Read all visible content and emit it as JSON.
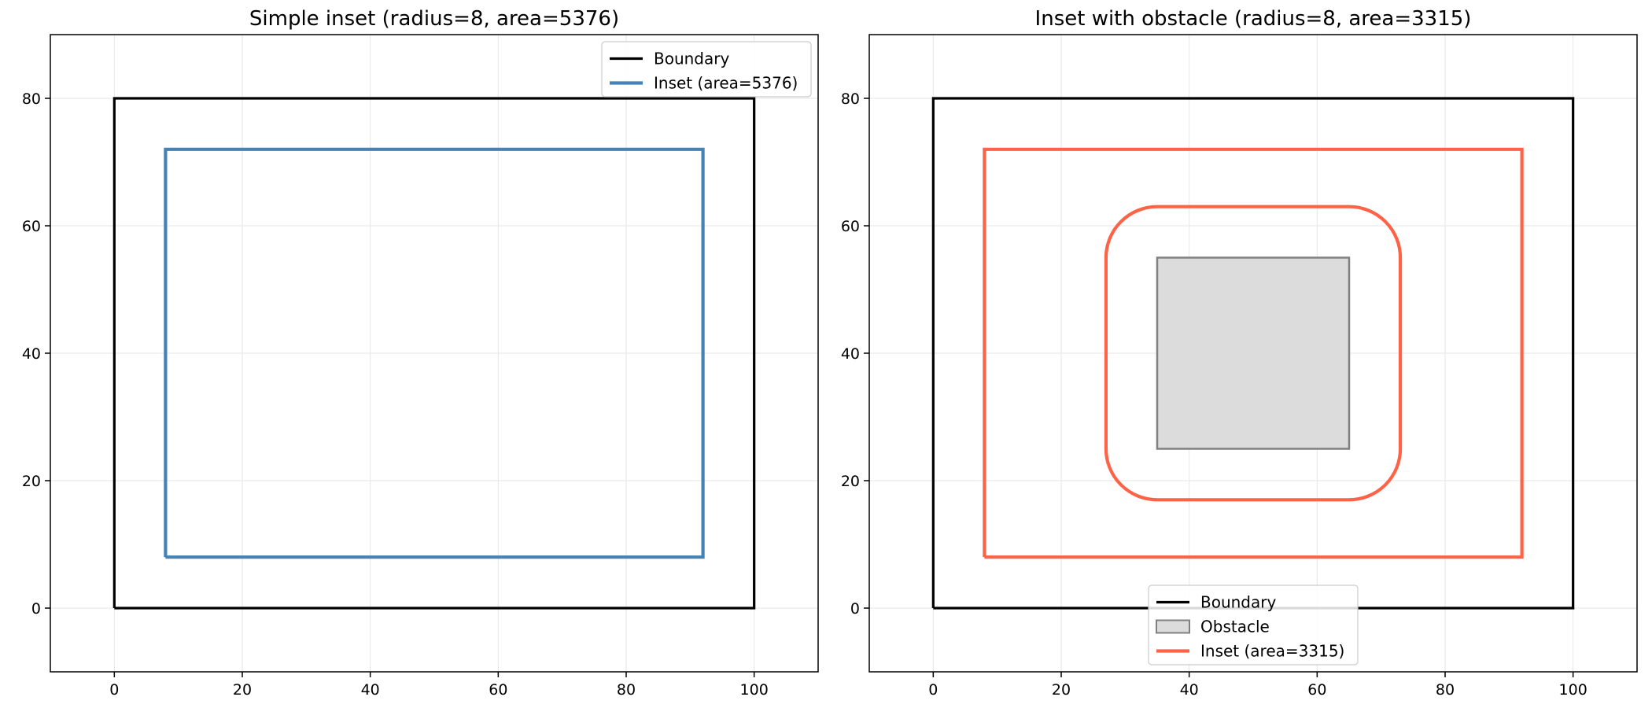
{
  "chart_data": [
    {
      "type": "line",
      "title": "Simple inset (radius=8, area=5376)",
      "xlim": [
        -10,
        110
      ],
      "ylim": [
        -10,
        90
      ],
      "xticks": [
        0,
        20,
        40,
        60,
        80,
        100
      ],
      "yticks": [
        0,
        20,
        40,
        60,
        80
      ],
      "grid": true,
      "legend_position": "top-right",
      "series": [
        {
          "name": "Boundary",
          "kind": "line",
          "color": "#000000",
          "x": [
            0,
            100,
            100,
            0,
            0
          ],
          "y": [
            0,
            0,
            80,
            80,
            0
          ]
        },
        {
          "name": "Inset (area=5376)",
          "kind": "line",
          "color": "#4682b4",
          "x": [
            8,
            92,
            92,
            8,
            8
          ],
          "y": [
            8,
            8,
            72,
            72,
            8
          ]
        }
      ]
    },
    {
      "type": "line",
      "title": "Inset with obstacle (radius=8, area=3315)",
      "xlim": [
        -10,
        110
      ],
      "ylim": [
        -10,
        90
      ],
      "xticks": [
        0,
        20,
        40,
        60,
        80,
        100
      ],
      "yticks": [
        0,
        20,
        40,
        60,
        80
      ],
      "grid": true,
      "legend_position": "bottom-center",
      "series": [
        {
          "name": "Boundary",
          "kind": "line",
          "color": "#000000",
          "x": [
            0,
            100,
            100,
            0,
            0
          ],
          "y": [
            0,
            0,
            80,
            80,
            0
          ]
        },
        {
          "name": "Obstacle",
          "kind": "fill",
          "color": "#dcdcdc",
          "edge_color": "#808080",
          "x": [
            35,
            65,
            65,
            35,
            35
          ],
          "y": [
            25,
            25,
            55,
            55,
            25
          ]
        },
        {
          "name": "Inset (area=3315)",
          "kind": "line",
          "color": "#ff6347",
          "x": [
            8,
            92,
            92,
            8,
            8
          ],
          "y": [
            8,
            8,
            72,
            72,
            8
          ],
          "hole": {
            "x_range": [
              27,
              73
            ],
            "y_range": [
              17,
              63
            ],
            "corner_radius": 8
          }
        }
      ]
    }
  ]
}
